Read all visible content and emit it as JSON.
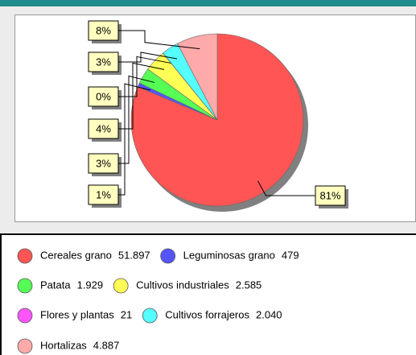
{
  "chart_data": {
    "type": "pie",
    "categories": [
      "Cereales grano",
      "Leguminosas grano",
      "Patata",
      "Cultivos industriales",
      "Flores y plantas",
      "Cultivos forrajeros",
      "Hortalizas"
    ],
    "values": [
      51897,
      479,
      1929,
      2585,
      21,
      2040,
      4887
    ],
    "value_labels": [
      "51.897",
      "479",
      "1.929",
      "2.585",
      "21",
      "2.040",
      "4.887"
    ],
    "slice_labels": [
      "81%",
      "1%",
      "3%",
      "4%",
      "0%",
      "3%",
      "8%"
    ],
    "colors": [
      "#ff5555",
      "#5555ff",
      "#55ff55",
      "#ffff55",
      "#ff55ff",
      "#55ffff",
      "#ffaaaa"
    ]
  }
}
